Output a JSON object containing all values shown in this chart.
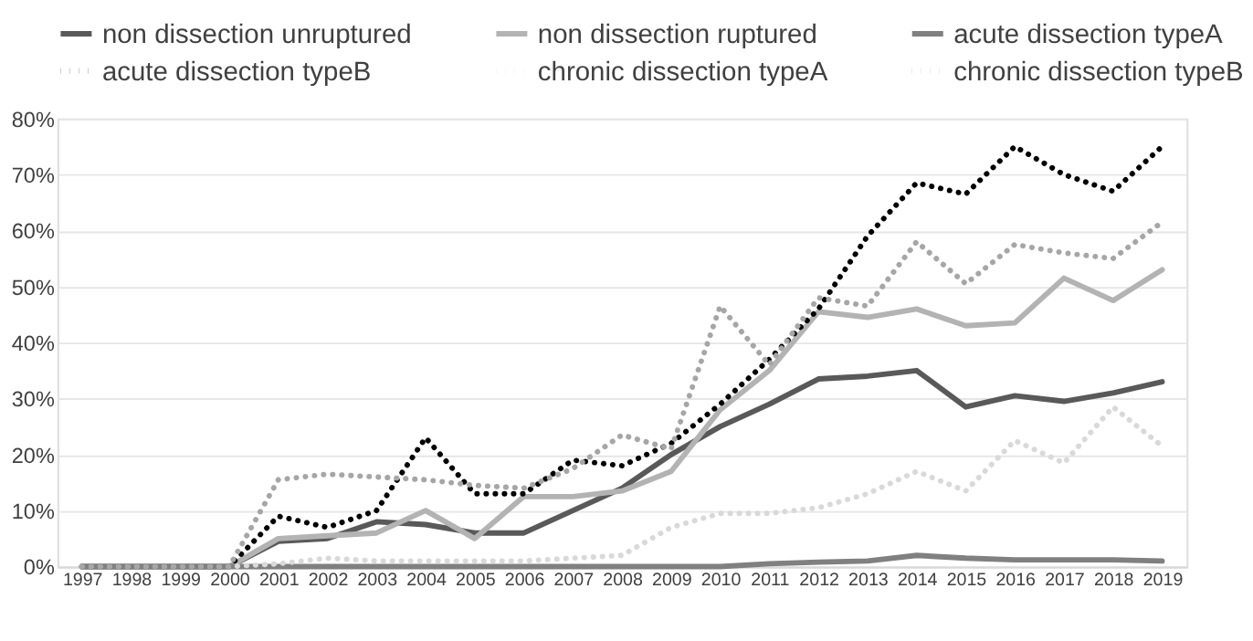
{
  "chart_data": {
    "type": "line",
    "categories": [
      "1997",
      "1998",
      "1999",
      "2000",
      "2001",
      "2002",
      "2003",
      "2004",
      "2005",
      "2006",
      "2007",
      "2008",
      "2009",
      "2010",
      "2011",
      "2012",
      "2013",
      "2014",
      "2015",
      "2016",
      "2017",
      "2018",
      "2019"
    ],
    "series": [
      {
        "name": "non dissection unruptured",
        "color": "#595959",
        "line_style": "solid",
        "values": [
          0,
          0,
          0,
          0,
          4.5,
          5,
          8,
          7.5,
          6,
          6,
          10,
          14,
          20,
          25,
          29,
          33.5,
          34,
          35,
          28.5,
          30.5,
          29.5,
          31,
          33
        ]
      },
      {
        "name": "non dissection ruptured",
        "color": "#b3b3b3",
        "line_style": "solid",
        "values": [
          0,
          0,
          0,
          0,
          5,
          5.5,
          6,
          10,
          5,
          12.5,
          12.5,
          13.5,
          17,
          28,
          35,
          45.5,
          44.5,
          46,
          43,
          43.5,
          51.5,
          47.5,
          53
        ]
      },
      {
        "name": "acute dissection typeA",
        "color": "#808080",
        "line_style": "solid",
        "values": [
          0,
          0,
          0,
          0,
          0,
          0,
          0,
          0,
          0,
          0,
          0,
          0,
          0,
          0,
          0.5,
          0.8,
          1,
          2,
          1.5,
          1.2,
          1.2,
          1.2,
          1
        ]
      },
      {
        "name": "acute dissection typeB",
        "color": "#000000",
        "line_style": "dotted",
        "values": [
          0,
          0,
          0,
          0,
          9,
          7,
          10,
          23,
          13,
          13,
          19,
          18,
          22,
          29,
          37,
          46,
          59,
          68.5,
          66.5,
          75,
          70,
          67,
          75
        ]
      },
      {
        "name": "chronic dissection typeA",
        "color": "#d9d9d9",
        "line_style": "dotted",
        "values": [
          0,
          0,
          0,
          0,
          0.5,
          1.5,
          1,
          1,
          1,
          1,
          1.5,
          2,
          7,
          9.5,
          9.5,
          10.5,
          13,
          17,
          13.5,
          22.5,
          18.5,
          28.5,
          21.5
        ]
      },
      {
        "name": "chronic dissection typeB",
        "color": "#a6a6a6",
        "line_style": "dotted",
        "values": [
          0,
          0,
          0,
          0,
          15.5,
          16.5,
          16,
          15.5,
          14.5,
          14,
          17.5,
          23.5,
          21,
          46.5,
          36,
          48,
          46.5,
          58,
          50.5,
          57.5,
          56,
          55,
          61.5
        ]
      }
    ],
    "ylim": [
      0,
      80
    ],
    "yticks": [
      {
        "value": 0,
        "label": "0%"
      },
      {
        "value": 10,
        "label": "10%"
      },
      {
        "value": 20,
        "label": "20%"
      },
      {
        "value": 30,
        "label": "30%"
      },
      {
        "value": 40,
        "label": "40%"
      },
      {
        "value": 50,
        "label": "50%"
      },
      {
        "value": 60,
        "label": "60%"
      },
      {
        "value": 70,
        "label": "70%"
      },
      {
        "value": 80,
        "label": "80%"
      }
    ],
    "grid": "y",
    "legend": "top"
  }
}
